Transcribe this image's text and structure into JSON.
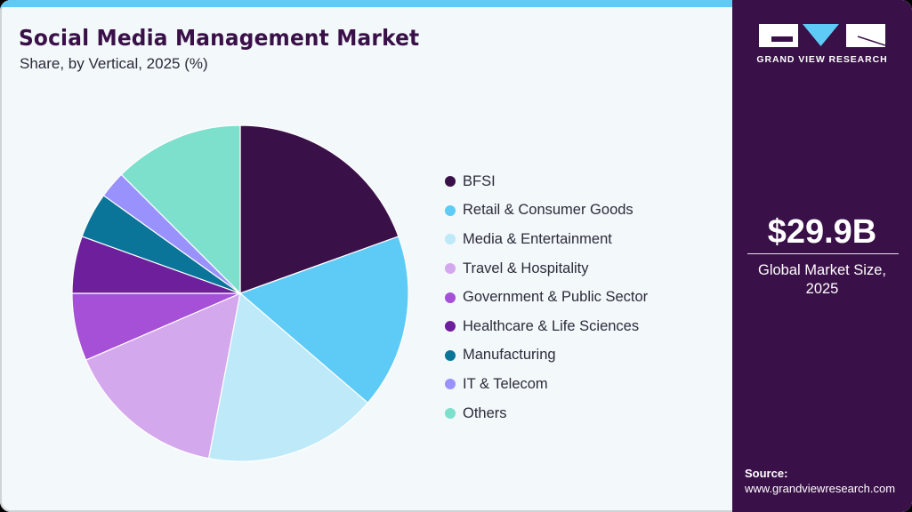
{
  "header": {
    "title": "Social Media Management Market",
    "subtitle": "Share, by Vertical, 2025 (%)"
  },
  "sidebar": {
    "brand": "GRAND VIEW RESEARCH",
    "market_value": "$29.9B",
    "market_label_line1": "Global Market Size,",
    "market_label_line2": "2025",
    "source_label": "Source:",
    "source_url": "www.grandviewresearch.com"
  },
  "colors": {
    "accent_bar": "#5ecbf6",
    "sidebar_bg": "#3a1048",
    "background": "#f3f8fb"
  },
  "legend": [
    {
      "label": "BFSI",
      "color": "#3a1048"
    },
    {
      "label": "Retail & Consumer Goods",
      "color": "#5ecbf6"
    },
    {
      "label": "Media & Entertainment",
      "color": "#bde9f8"
    },
    {
      "label": "Travel & Hospitality",
      "color": "#d4a8ec"
    },
    {
      "label": "Government & Public Sector",
      "color": "#a550d6"
    },
    {
      "label": "Healthcare & Life Sciences",
      "color": "#6e1f9c"
    },
    {
      "label": "Manufacturing",
      "color": "#0a7499"
    },
    {
      "label": "IT & Telecom",
      "color": "#9a92fc"
    },
    {
      "label": "Others",
      "color": "#7ce0cc"
    }
  ],
  "chart_data": {
    "type": "pie",
    "title": "Social Media Management Market",
    "subtitle": "Share, by Vertical, 2025 (%)",
    "categories": [
      "BFSI",
      "Retail & Consumer Goods",
      "Media & Entertainment",
      "Travel & Hospitality",
      "Government & Public Sector",
      "Healthcare & Life Sciences",
      "Manufacturing",
      "IT & Telecom",
      "Others"
    ],
    "values": [
      19.5,
      16.8,
      16.7,
      15.5,
      6.5,
      5.5,
      4.4,
      2.6,
      12.5
    ],
    "colors": [
      "#3a1048",
      "#5ecbf6",
      "#bde9f8",
      "#d4a8ec",
      "#a550d6",
      "#6e1f9c",
      "#0a7499",
      "#9a92fc",
      "#7ce0cc"
    ],
    "start_angle": "12 o'clock, clockwise",
    "legend_position": "right",
    "total_market_size": "$29.9B"
  }
}
